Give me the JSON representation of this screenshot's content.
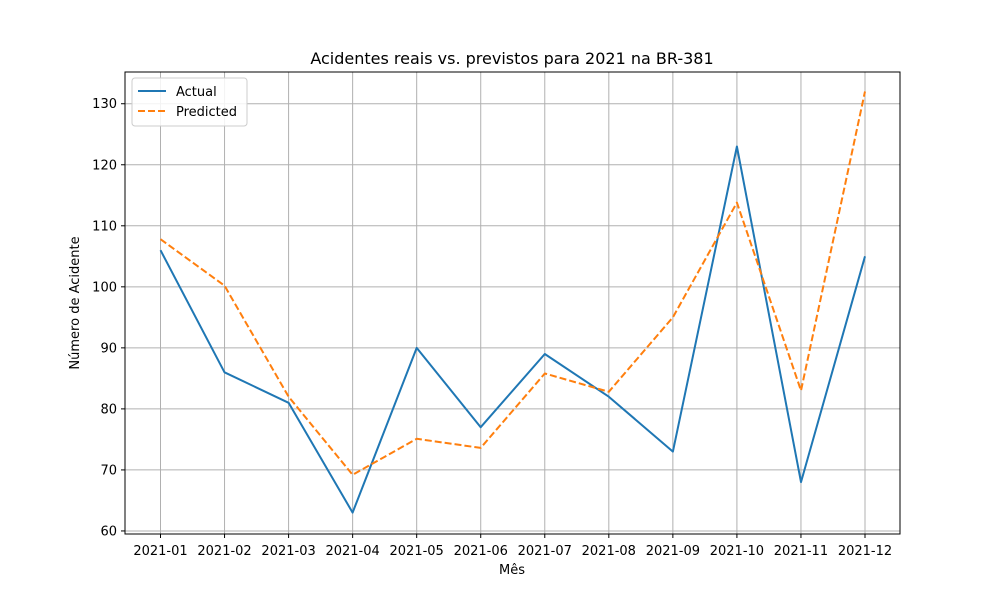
{
  "chart_data": {
    "type": "line",
    "title": "Acidentes reais vs. previstos para 2021 na BR-381",
    "xlabel": "Mês",
    "ylabel": "Número de Acidente",
    "categories": [
      "2021-01",
      "2021-02",
      "2021-03",
      "2021-04",
      "2021-05",
      "2021-06",
      "2021-07",
      "2021-08",
      "2021-09",
      "2021-10",
      "2021-11",
      "2021-12"
    ],
    "series": [
      {
        "name": "Actual",
        "color": "#1f77b4",
        "style": "solid",
        "values": [
          106,
          86,
          81,
          63,
          90,
          77,
          89,
          82,
          73,
          123,
          68,
          105
        ]
      },
      {
        "name": "Predicted",
        "color": "#ff7f0e",
        "style": "dashed",
        "values": [
          107.8,
          100.2,
          82,
          69.2,
          75.1,
          73.6,
          85.8,
          82.8,
          95,
          113.8,
          83,
          132
        ]
      }
    ],
    "ylim": [
      59.5,
      135.2
    ],
    "yticks": [
      60,
      70,
      80,
      90,
      100,
      110,
      120,
      130
    ],
    "grid": true,
    "legend_position": "top-left"
  }
}
